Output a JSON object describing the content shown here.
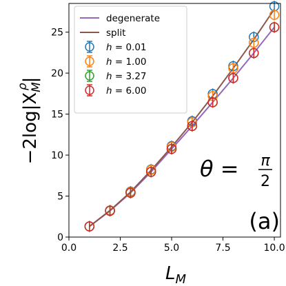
{
  "chart_data": {
    "type": "line",
    "xlabel": "L",
    "xlabel_sub": "M",
    "ylabel_prefix": "−2log|X",
    "ylabel_sub": "M",
    "ylabel_sup": "ρ",
    "ylabel_suffix": "|",
    "xlim": [
      0.0,
      10.3
    ],
    "ylim": [
      0,
      28.5
    ],
    "xticks": [
      0.0,
      2.5,
      5.0,
      7.5,
      10.0
    ],
    "xtick_labels": [
      "0.0",
      "2.5",
      "5.0",
      "7.5",
      "10.0"
    ],
    "yticks": [
      0,
      5,
      10,
      15,
      20,
      25
    ],
    "ytick_labels": [
      "0",
      "5",
      "10",
      "15",
      "20",
      "25"
    ],
    "grid": false,
    "legend_position": "top-left",
    "lines": [
      {
        "name": "degenerate",
        "color": "#9467bd",
        "x": [
          1,
          2,
          3,
          4,
          5,
          6,
          7,
          8,
          9,
          10
        ],
        "y": [
          1.3,
          3.2,
          5.4,
          7.95,
          10.75,
          13.55,
          16.45,
          19.4,
          22.45,
          25.6
        ]
      },
      {
        "name": "split",
        "color": "#8c564b",
        "x": [
          1,
          2,
          3,
          4,
          5,
          6,
          7,
          8,
          9,
          10
        ],
        "y": [
          1.3,
          3.25,
          5.5,
          8.15,
          11.0,
          14.0,
          17.2,
          20.6,
          24.1,
          27.8
        ]
      }
    ],
    "series": [
      {
        "name_prefix": "h",
        "name_value": " = 0.01",
        "color": "#1f77b4",
        "x": [
          1,
          2,
          3,
          4,
          5,
          6,
          7,
          8,
          9,
          10
        ],
        "y": [
          1.3,
          3.25,
          5.55,
          8.25,
          11.1,
          14.15,
          17.45,
          20.85,
          24.4,
          28.15
        ]
      },
      {
        "name_prefix": "h",
        "name_value": " = 1.00",
        "color": "#ff7f0e",
        "x": [
          1,
          2,
          3,
          4,
          5,
          6,
          7,
          8,
          9,
          10
        ],
        "y": [
          1.3,
          3.25,
          5.5,
          8.2,
          11.0,
          14.0,
          17.2,
          20.6,
          23.7,
          27.1
        ]
      },
      {
        "name_prefix": "h",
        "name_value": " = 3.27",
        "color": "#2ca02c",
        "x": [
          1,
          2,
          3,
          4,
          5,
          6,
          7,
          8,
          9,
          10
        ],
        "y": [
          1.3,
          3.2,
          5.4,
          7.95,
          10.75,
          13.55,
          16.45,
          19.4,
          22.45,
          25.6
        ]
      },
      {
        "name_prefix": "h",
        "name_value": " = 6.00",
        "color": "#d62728",
        "x": [
          1,
          2,
          3,
          4,
          5,
          6,
          7,
          8,
          9,
          10
        ],
        "y": [
          1.3,
          3.2,
          5.4,
          7.95,
          10.75,
          13.55,
          16.45,
          19.4,
          22.45,
          25.6
        ]
      }
    ],
    "annotation_theta": "θ = ",
    "annotation_frac_num": "π",
    "annotation_frac_den": "2",
    "panel_label": "(a)"
  }
}
